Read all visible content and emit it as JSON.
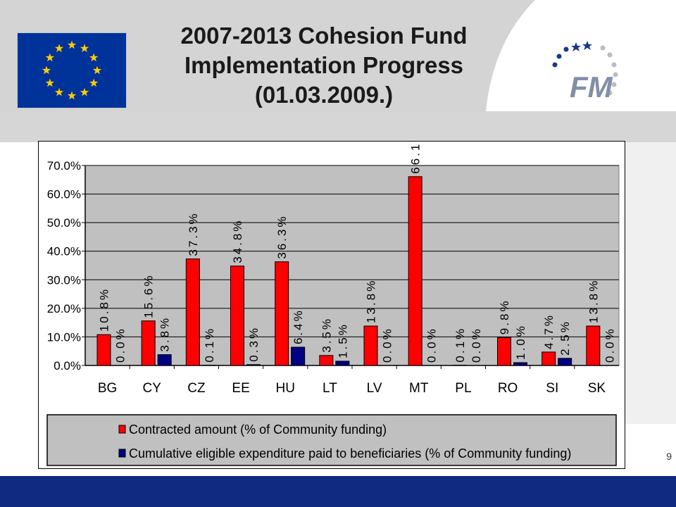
{
  "slide": {
    "title_lines": [
      "2007-2013 Cohesion Fund",
      "Implementation Progress",
      "(01.03.2009.)"
    ],
    "slide_number": "9",
    "logo_text": "FM",
    "colors": {
      "contracted": "#ff0000",
      "paid": "#000080",
      "footer": "#0f2a80",
      "flag": "#003399",
      "stars": "#ffcc00"
    }
  },
  "chart_data": {
    "type": "bar",
    "categories": [
      "BG",
      "CY",
      "CZ",
      "EE",
      "HU",
      "LT",
      "LV",
      "MT",
      "PL",
      "RO",
      "SI",
      "SK"
    ],
    "series": [
      {
        "name": "Contracted amount (% of Community funding)",
        "values": [
          10.8,
          15.6,
          37.3,
          34.8,
          36.3,
          3.5,
          13.8,
          66.1,
          0.1,
          9.8,
          4.7,
          13.8
        ],
        "labels": [
          "10.8%",
          "15.6%",
          "37.3%",
          "34.8%",
          "36.3%",
          "3.5%",
          "13.8%",
          "66.1%",
          "0.1%",
          "9.8%",
          "4.7%",
          "13.8%"
        ]
      },
      {
        "name": "Cumulative eligible expenditure paid to beneficiaries (% of Community funding)",
        "values": [
          0.0,
          3.8,
          0.1,
          0.3,
          6.4,
          1.5,
          0.0,
          0.0,
          0.0,
          1.0,
          2.5,
          0.0
        ],
        "labels": [
          "0.0%",
          "3.8%",
          "0.1%",
          "0.3%",
          "6.4%",
          "1.5%",
          "0.0%",
          "0.0%",
          "0.0%",
          "1.0%",
          "2.5%",
          "0.0%"
        ]
      }
    ],
    "yticks": [
      "0.0%",
      "10.0%",
      "20.0%",
      "30.0%",
      "40.0%",
      "50.0%",
      "60.0%",
      "70.0%"
    ],
    "ylim": [
      0,
      70
    ],
    "grid": true,
    "legend_position": "bottom"
  }
}
